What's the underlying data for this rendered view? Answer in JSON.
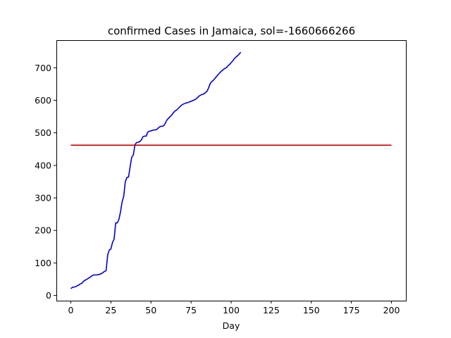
{
  "chart_data": {
    "type": "line",
    "title": "confirmed Cases in Jamaica, sol=-1660666266",
    "xlabel": "Day",
    "ylabel": "",
    "xlim": [
      -9,
      209
    ],
    "ylim": [
      -16,
      785
    ],
    "xticks": [
      0,
      25,
      50,
      75,
      100,
      125,
      150,
      175,
      200
    ],
    "yticks": [
      0,
      100,
      200,
      300,
      400,
      500,
      600,
      700
    ],
    "grid": false,
    "legend": "none",
    "series": [
      {
        "color": "#0000cc",
        "points": [
          [
            0,
            21
          ],
          [
            1,
            25
          ],
          [
            2,
            26
          ],
          [
            3,
            27
          ],
          [
            4,
            30
          ],
          [
            5,
            32
          ],
          [
            6,
            36
          ],
          [
            7,
            38
          ],
          [
            8,
            44
          ],
          [
            9,
            47
          ],
          [
            10,
            50
          ],
          [
            11,
            53
          ],
          [
            12,
            56
          ],
          [
            13,
            60
          ],
          [
            14,
            63
          ],
          [
            15,
            63
          ],
          [
            16,
            63
          ],
          [
            17,
            64
          ],
          [
            18,
            65
          ],
          [
            19,
            67
          ],
          [
            20,
            70
          ],
          [
            21,
            74
          ],
          [
            22,
            76
          ],
          [
            23,
            125
          ],
          [
            24,
            140
          ],
          [
            25,
            143
          ],
          [
            26,
            163
          ],
          [
            27,
            173
          ],
          [
            28,
            223
          ],
          [
            29,
            223
          ],
          [
            30,
            234
          ],
          [
            31,
            257
          ],
          [
            32,
            288
          ],
          [
            33,
            305
          ],
          [
            34,
            350
          ],
          [
            35,
            363
          ],
          [
            36,
            364
          ],
          [
            37,
            396
          ],
          [
            38,
            425
          ],
          [
            39,
            432
          ],
          [
            40,
            463
          ],
          [
            41,
            470
          ],
          [
            42,
            471
          ],
          [
            43,
            473
          ],
          [
            44,
            478
          ],
          [
            45,
            488
          ],
          [
            46,
            490
          ],
          [
            47,
            490
          ],
          [
            48,
            502
          ],
          [
            49,
            505
          ],
          [
            50,
            506
          ],
          [
            51,
            508
          ],
          [
            52,
            509
          ],
          [
            53,
            509
          ],
          [
            54,
            512
          ],
          [
            55,
            517
          ],
          [
            56,
            520
          ],
          [
            57,
            520
          ],
          [
            58,
            522
          ],
          [
            59,
            530
          ],
          [
            60,
            540
          ],
          [
            61,
            545
          ],
          [
            62,
            550
          ],
          [
            63,
            555
          ],
          [
            64,
            562
          ],
          [
            65,
            567
          ],
          [
            66,
            570
          ],
          [
            67,
            575
          ],
          [
            68,
            580
          ],
          [
            69,
            585
          ],
          [
            70,
            588
          ],
          [
            71,
            590
          ],
          [
            72,
            592
          ],
          [
            73,
            593
          ],
          [
            74,
            595
          ],
          [
            75,
            597
          ],
          [
            76,
            599
          ],
          [
            77,
            601
          ],
          [
            78,
            604
          ],
          [
            79,
            608
          ],
          [
            80,
            613
          ],
          [
            81,
            616
          ],
          [
            82,
            618
          ],
          [
            83,
            620
          ],
          [
            84,
            624
          ],
          [
            85,
            628
          ],
          [
            86,
            639
          ],
          [
            87,
            652
          ],
          [
            88,
            658
          ],
          [
            89,
            662
          ],
          [
            90,
            668
          ],
          [
            91,
            674
          ],
          [
            92,
            680
          ],
          [
            93,
            685
          ],
          [
            94,
            690
          ],
          [
            95,
            694
          ],
          [
            96,
            698
          ],
          [
            97,
            700
          ],
          [
            98,
            706
          ],
          [
            99,
            710
          ],
          [
            100,
            716
          ],
          [
            101,
            721
          ],
          [
            102,
            728
          ],
          [
            103,
            733
          ],
          [
            104,
            737
          ],
          [
            105,
            742
          ],
          [
            106,
            748
          ]
        ]
      },
      {
        "color": "#cc0000",
        "points": [
          [
            0,
            462
          ],
          [
            200,
            462
          ]
        ]
      }
    ]
  }
}
